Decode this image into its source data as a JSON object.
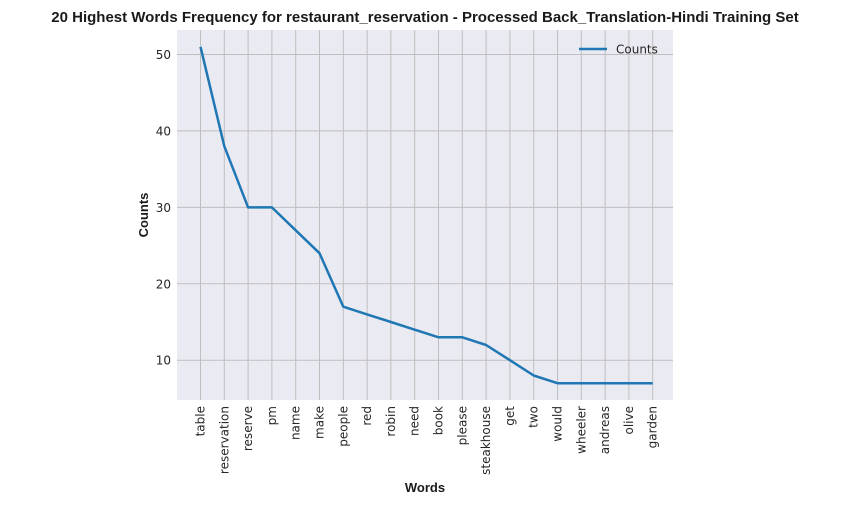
{
  "chart_data": {
    "type": "line",
    "title": "20 Highest Words Frequency for restaurant_reservation - Processed Back_Translation-Hindi Training Set",
    "xlabel": "Words",
    "ylabel": "Counts",
    "categories": [
      "table",
      "reservation",
      "reserve",
      "pm",
      "name",
      "make",
      "people",
      "red",
      "robin",
      "need",
      "book",
      "please",
      "steakhouse",
      "get",
      "two",
      "would",
      "wheeler",
      "andreas",
      "olive",
      "garden"
    ],
    "series": [
      {
        "name": "Counts",
        "values": [
          51,
          38,
          30,
          30,
          27,
          24,
          17,
          16,
          15,
          14,
          13,
          13,
          12,
          10,
          8,
          7,
          7,
          7,
          7,
          7
        ],
        "color": "#1f77b4"
      }
    ],
    "yticks": [
      10,
      20,
      30,
      40,
      50
    ],
    "ylim": [
      4.8,
      53.2
    ],
    "grid": true,
    "legend_position": "top-right",
    "background": "#eaeaf2",
    "grid_color": "#bfbfbf"
  }
}
